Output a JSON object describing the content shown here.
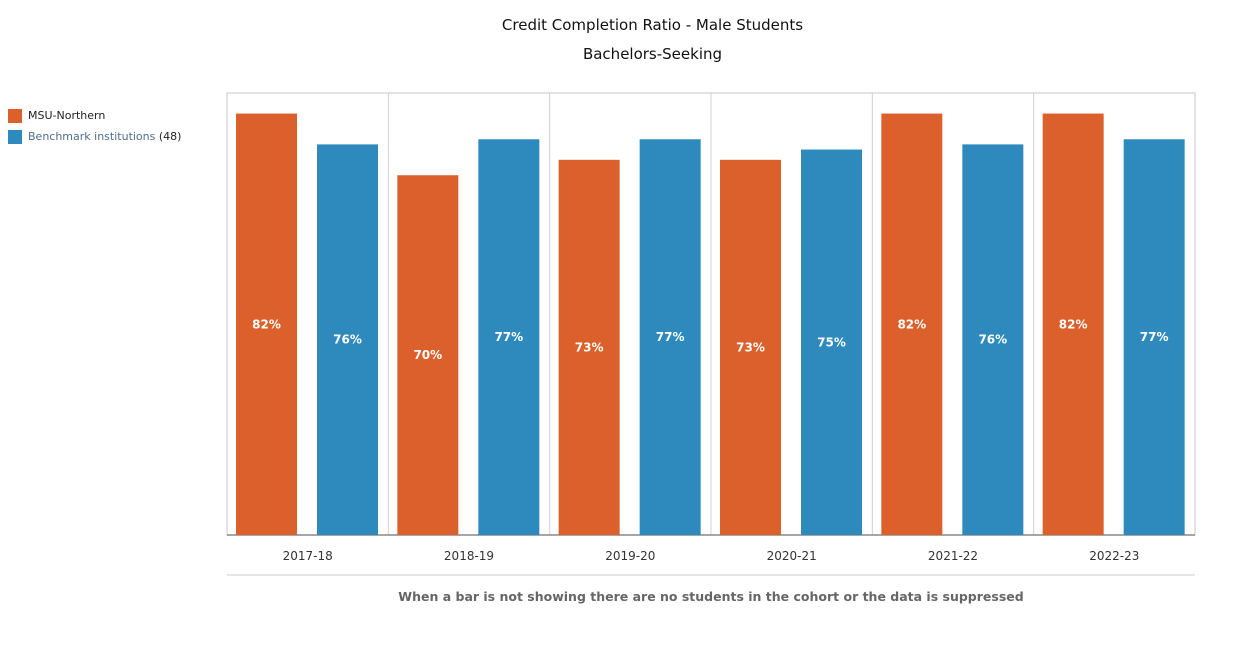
{
  "chart_data": {
    "type": "bar",
    "title": "Credit Completion Ratio - Male Students",
    "subtitle": "Bachelors-Seeking",
    "categories": [
      "2017-18",
      "2018-19",
      "2019-20",
      "2020-21",
      "2021-22",
      "2022-23"
    ],
    "series": [
      {
        "name": "MSU-Northern",
        "color": "#dc602c",
        "values": [
          82,
          70,
          73,
          73,
          82,
          82
        ],
        "labels": [
          "82%",
          "70%",
          "73%",
          "73%",
          "82%",
          "82%"
        ]
      },
      {
        "name": "Benchmark institutions",
        "count": "(48)",
        "color": "#2e8abd",
        "values": [
          76,
          77,
          77,
          75,
          76,
          77
        ],
        "labels": [
          "76%",
          "77%",
          "77%",
          "75%",
          "76%",
          "77%"
        ]
      }
    ],
    "ylim": [
      0,
      86
    ],
    "legend_position": "left",
    "note": "When a bar is not showing there are no students in the cohort or the data is suppressed"
  }
}
